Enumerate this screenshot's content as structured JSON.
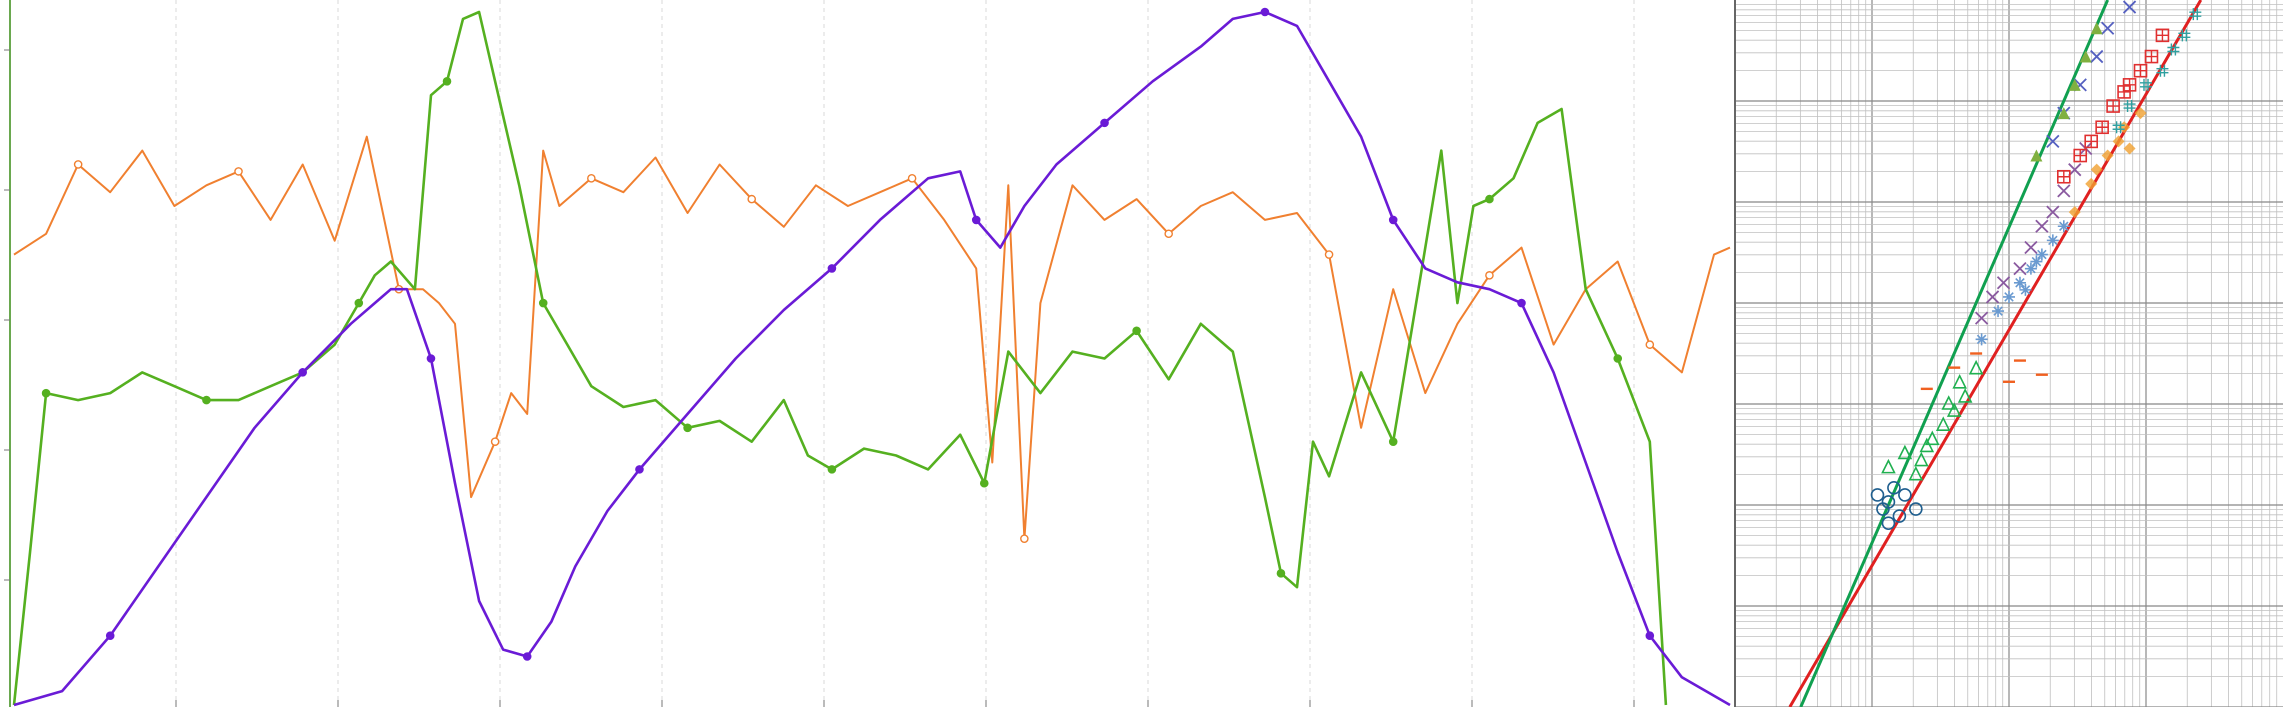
{
  "chart_data": [
    {
      "type": "line",
      "title": "",
      "xlabel": "",
      "ylabel": "",
      "grid": true,
      "legend": "none",
      "xlim": [
        0,
        1070
      ],
      "ylim": [
        0,
        100
      ],
      "series": [
        {
          "color": "#f08030",
          "style": "noisy line with sparse circle markers",
          "x": [
            0,
            20,
            40,
            60,
            80,
            100,
            120,
            140,
            160,
            180,
            200,
            220,
            240,
            255,
            265,
            275,
            285,
            300,
            310,
            320,
            330,
            340,
            360,
            380,
            400,
            420,
            440,
            460,
            480,
            500,
            520,
            540,
            560,
            580,
            600,
            610,
            620,
            630,
            640,
            660,
            680,
            700,
            720,
            740,
            760,
            780,
            800,
            820,
            840,
            860,
            880,
            900,
            920,
            940,
            960,
            980,
            1000,
            1020,
            1040,
            1060,
            1070
          ],
          "values": [
            65,
            68,
            78,
            74,
            80,
            72,
            75,
            77,
            70,
            78,
            67,
            82,
            60,
            60,
            58,
            55,
            30,
            38,
            45,
            42,
            80,
            72,
            76,
            74,
            79,
            71,
            78,
            73,
            69,
            75,
            72,
            74,
            76,
            70,
            63,
            35,
            75,
            24,
            58,
            75,
            70,
            73,
            68,
            72,
            74,
            70,
            71,
            65,
            40,
            60,
            45,
            55,
            62,
            66,
            52,
            60,
            64,
            52,
            48,
            65,
            66
          ]
        },
        {
          "color": "#55b020",
          "style": "line with circle markers",
          "x": [
            0,
            10,
            20,
            40,
            60,
            80,
            100,
            120,
            140,
            160,
            180,
            200,
            215,
            225,
            235,
            250,
            260,
            270,
            280,
            290,
            300,
            315,
            330,
            345,
            360,
            380,
            400,
            420,
            440,
            460,
            480,
            495,
            510,
            530,
            550,
            570,
            590,
            605,
            620,
            640,
            660,
            680,
            700,
            720,
            740,
            760,
            780,
            790,
            800,
            810,
            820,
            840,
            860,
            880,
            890,
            900,
            910,
            920,
            935,
            950,
            965,
            980,
            1000,
            1020,
            1030
          ],
          "values": [
            0,
            22,
            45,
            44,
            45,
            48,
            46,
            44,
            44,
            46,
            48,
            52,
            58,
            62,
            64,
            60,
            88,
            90,
            99,
            100,
            90,
            75,
            58,
            52,
            46,
            43,
            44,
            40,
            41,
            38,
            44,
            36,
            34,
            37,
            36,
            34,
            39,
            32,
            51,
            45,
            51,
            50,
            54,
            47,
            55,
            51,
            30,
            19,
            17,
            38,
            33,
            48,
            38,
            66,
            80,
            58,
            72,
            73,
            76,
            84,
            86,
            60,
            50,
            38,
            0
          ]
        },
        {
          "color": "#6a1bd6",
          "style": "smooth line with sparse circle markers",
          "x": [
            0,
            30,
            60,
            90,
            120,
            150,
            180,
            210,
            235,
            245,
            260,
            275,
            290,
            305,
            320,
            335,
            350,
            370,
            390,
            420,
            450,
            480,
            510,
            540,
            570,
            590,
            600,
            615,
            630,
            650,
            680,
            710,
            740,
            760,
            780,
            800,
            820,
            840,
            860,
            880,
            900,
            920,
            940,
            960,
            980,
            1000,
            1020,
            1040,
            1070
          ],
          "values": [
            0,
            2,
            10,
            20,
            30,
            40,
            48,
            55,
            60,
            60,
            50,
            32,
            15,
            8,
            7,
            12,
            20,
            28,
            34,
            42,
            50,
            57,
            63,
            70,
            76,
            77,
            70,
            66,
            72,
            78,
            84,
            90,
            95,
            99,
            100,
            98,
            90,
            82,
            70,
            63,
            61,
            60,
            58,
            48,
            35,
            22,
            10,
            4,
            0
          ]
        }
      ]
    },
    {
      "type": "scatter",
      "title": "",
      "xlabel": "",
      "ylabel": "",
      "grid": true,
      "legend": "none",
      "xlim": [
        0,
        100
      ],
      "ylim": [
        0,
        100
      ],
      "scale": "log-log",
      "fit_lines": [
        {
          "color": "#e02020",
          "x": [
            10,
            85
          ],
          "y": [
            0,
            100
          ]
        },
        {
          "color": "#10a050",
          "x": [
            12,
            68
          ],
          "y": [
            0,
            100
          ]
        }
      ],
      "series": [
        {
          "color": "#1f5f8f",
          "marker": "circle",
          "x": [
            26,
            28,
            30,
            27,
            29,
            31,
            33,
            28
          ],
          "y": [
            30,
            29,
            27,
            28,
            31,
            30,
            28,
            26
          ]
        },
        {
          "color": "#20b050",
          "marker": "triangle",
          "x": [
            28,
            31,
            34,
            36,
            38,
            40,
            42,
            39,
            35,
            33,
            41,
            44
          ],
          "y": [
            34,
            36,
            35,
            38,
            40,
            42,
            44,
            43,
            37,
            33,
            46,
            48
          ]
        },
        {
          "color": "#6a9ad0",
          "marker": "star",
          "x": [
            45,
            48,
            50,
            52,
            54,
            56,
            58,
            60,
            55,
            53
          ],
          "y": [
            52,
            56,
            58,
            60,
            62,
            64,
            66,
            68,
            63,
            59
          ]
        },
        {
          "color": "#8a5aa0",
          "marker": "x-cross",
          "x": [
            45,
            47,
            49,
            52,
            54,
            56,
            58,
            60,
            62,
            64
          ],
          "y": [
            55,
            58,
            60,
            62,
            65,
            68,
            70,
            73,
            76,
            79
          ]
        },
        {
          "color": "#f0a030",
          "marker": "diamond",
          "x": [
            62,
            65,
            66,
            68,
            70,
            71,
            72,
            74
          ],
          "y": [
            70,
            74,
            76,
            78,
            80,
            82,
            79,
            84
          ]
        },
        {
          "color": "#e03030",
          "marker": "square-plus",
          "x": [
            60,
            63,
            65,
            67,
            69,
            71,
            72,
            74,
            76,
            78
          ],
          "y": [
            75,
            78,
            80,
            82,
            85,
            87,
            88,
            90,
            92,
            95
          ]
        },
        {
          "color": "#30a0a0",
          "marker": "hash",
          "x": [
            70,
            72,
            75,
            78,
            80,
            82,
            84
          ],
          "y": [
            82,
            85,
            88,
            90,
            93,
            95,
            98
          ]
        },
        {
          "color": "#5560c0",
          "marker": "x-cross",
          "x": [
            58,
            60,
            63,
            66,
            68,
            72
          ],
          "y": [
            80,
            84,
            88,
            92,
            96,
            99
          ]
        },
        {
          "color": "#80b040",
          "marker": "triangle-filled",
          "x": [
            55,
            60,
            62,
            64,
            66
          ],
          "y": [
            78,
            84,
            88,
            92,
            96
          ]
        },
        {
          "color": "#f06020",
          "marker": "dash",
          "x": [
            35,
            40,
            44,
            50,
            52,
            56
          ],
          "y": [
            45,
            48,
            50,
            46,
            49,
            47
          ]
        }
      ]
    }
  ]
}
